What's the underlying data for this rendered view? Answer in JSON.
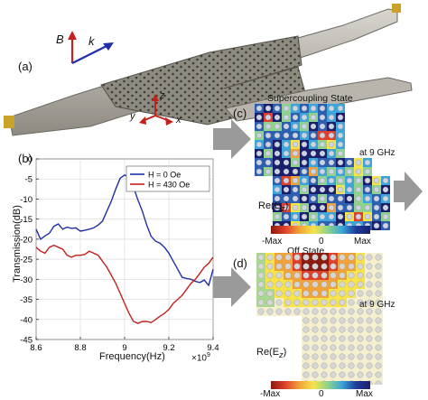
{
  "panels": {
    "a": {
      "label": "(a)",
      "axes": {
        "B": "B",
        "k": "k",
        "x": "x",
        "y": "y",
        "z": "z"
      }
    },
    "b": {
      "label": "(b)"
    },
    "c": {
      "label": "(c)",
      "state_title": "Supercoupling State",
      "freq_note": "at 9 GHz",
      "field_label": "Re(E",
      "field_sub": "z",
      "field_close": ")",
      "colorbar": {
        "min_label": "-Max",
        "mid_label": "0",
        "max_label": "Max"
      }
    },
    "d": {
      "label": "(d)",
      "state_title": "Off State",
      "freq_note": "at 9 GHz",
      "field_label": "Re(E",
      "field_sub": "z",
      "field_close": ")",
      "colorbar": {
        "min_label": "-Max",
        "mid_label": "0",
        "max_label": "Max"
      }
    }
  },
  "chart_data": {
    "type": "line",
    "xlabel": "Frequency(Hz)",
    "ylabel": "Transmission(dB)",
    "x_multiplier": "×10",
    "x_multiplier_exp": "9",
    "xlim": [
      8.6,
      9.4
    ],
    "ylim": [
      -45,
      0
    ],
    "xticks": [
      "8.6",
      "8.8",
      "9",
      "9.2",
      "9.4"
    ],
    "yticks": [
      "0",
      "-5",
      "-10",
      "-15",
      "-20",
      "-25",
      "-30",
      "-35",
      "-40",
      "-45"
    ],
    "legend_position": "top-right",
    "series": [
      {
        "name": "H = 0 Oe",
        "color": "#1f2fa8",
        "x": [
          8.6,
          8.62,
          8.64,
          8.66,
          8.68,
          8.7,
          8.72,
          8.74,
          8.76,
          8.78,
          8.8,
          8.82,
          8.84,
          8.86,
          8.88,
          8.9,
          8.92,
          8.94,
          8.96,
          8.98,
          9.0,
          9.02,
          9.04,
          9.06,
          9.08,
          9.1,
          9.12,
          9.14,
          9.16,
          9.18,
          9.2,
          9.22,
          9.24,
          9.26,
          9.28,
          9.3,
          9.32,
          9.34,
          9.36,
          9.38,
          9.4
        ],
        "y": [
          -17.5,
          -20,
          -19.2,
          -18.5,
          -16.8,
          -16.2,
          -17.5,
          -17.0,
          -17.3,
          -17.2,
          -18.0,
          -17.8,
          -17.5,
          -17.2,
          -16.5,
          -15.5,
          -13.0,
          -10.5,
          -7.5,
          -4.8,
          -4.0,
          -4.6,
          -7.0,
          -10.2,
          -13.0,
          -16.5,
          -19.3,
          -20.5,
          -21.0,
          -22.0,
          -23.5,
          -25.5,
          -27.5,
          -29.5,
          -29.8,
          -30.0,
          -30.5,
          -30.8,
          -30.2,
          -31.5,
          -27.5
        ]
      },
      {
        "name": "H = 430 Oe",
        "color": "#c4201c",
        "x": [
          8.6,
          8.62,
          8.64,
          8.66,
          8.68,
          8.7,
          8.72,
          8.74,
          8.76,
          8.78,
          8.8,
          8.82,
          8.84,
          8.86,
          8.88,
          8.9,
          8.92,
          8.94,
          8.96,
          8.98,
          9.0,
          9.02,
          9.04,
          9.06,
          9.08,
          9.1,
          9.12,
          9.14,
          9.16,
          9.18,
          9.2,
          9.22,
          9.24,
          9.26,
          9.28,
          9.3,
          9.32,
          9.34,
          9.36,
          9.38,
          9.4
        ],
        "y": [
          -22.0,
          -23.0,
          -23.5,
          -22.0,
          -21.5,
          -22.0,
          -22.5,
          -24.0,
          -24.5,
          -24.0,
          -24.0,
          -23.8,
          -23.0,
          -23.5,
          -24.0,
          -25.5,
          -27.0,
          -29.0,
          -31.0,
          -33.5,
          -36.0,
          -38.5,
          -40.5,
          -41.0,
          -40.5,
          -40.5,
          -40.8,
          -40.0,
          -39.2,
          -38.5,
          -37.5,
          -36.0,
          -35.0,
          -34.0,
          -32.5,
          -31.0,
          -30.0,
          -28.5,
          -27.0,
          -26.0,
          -24.5
        ]
      }
    ]
  }
}
